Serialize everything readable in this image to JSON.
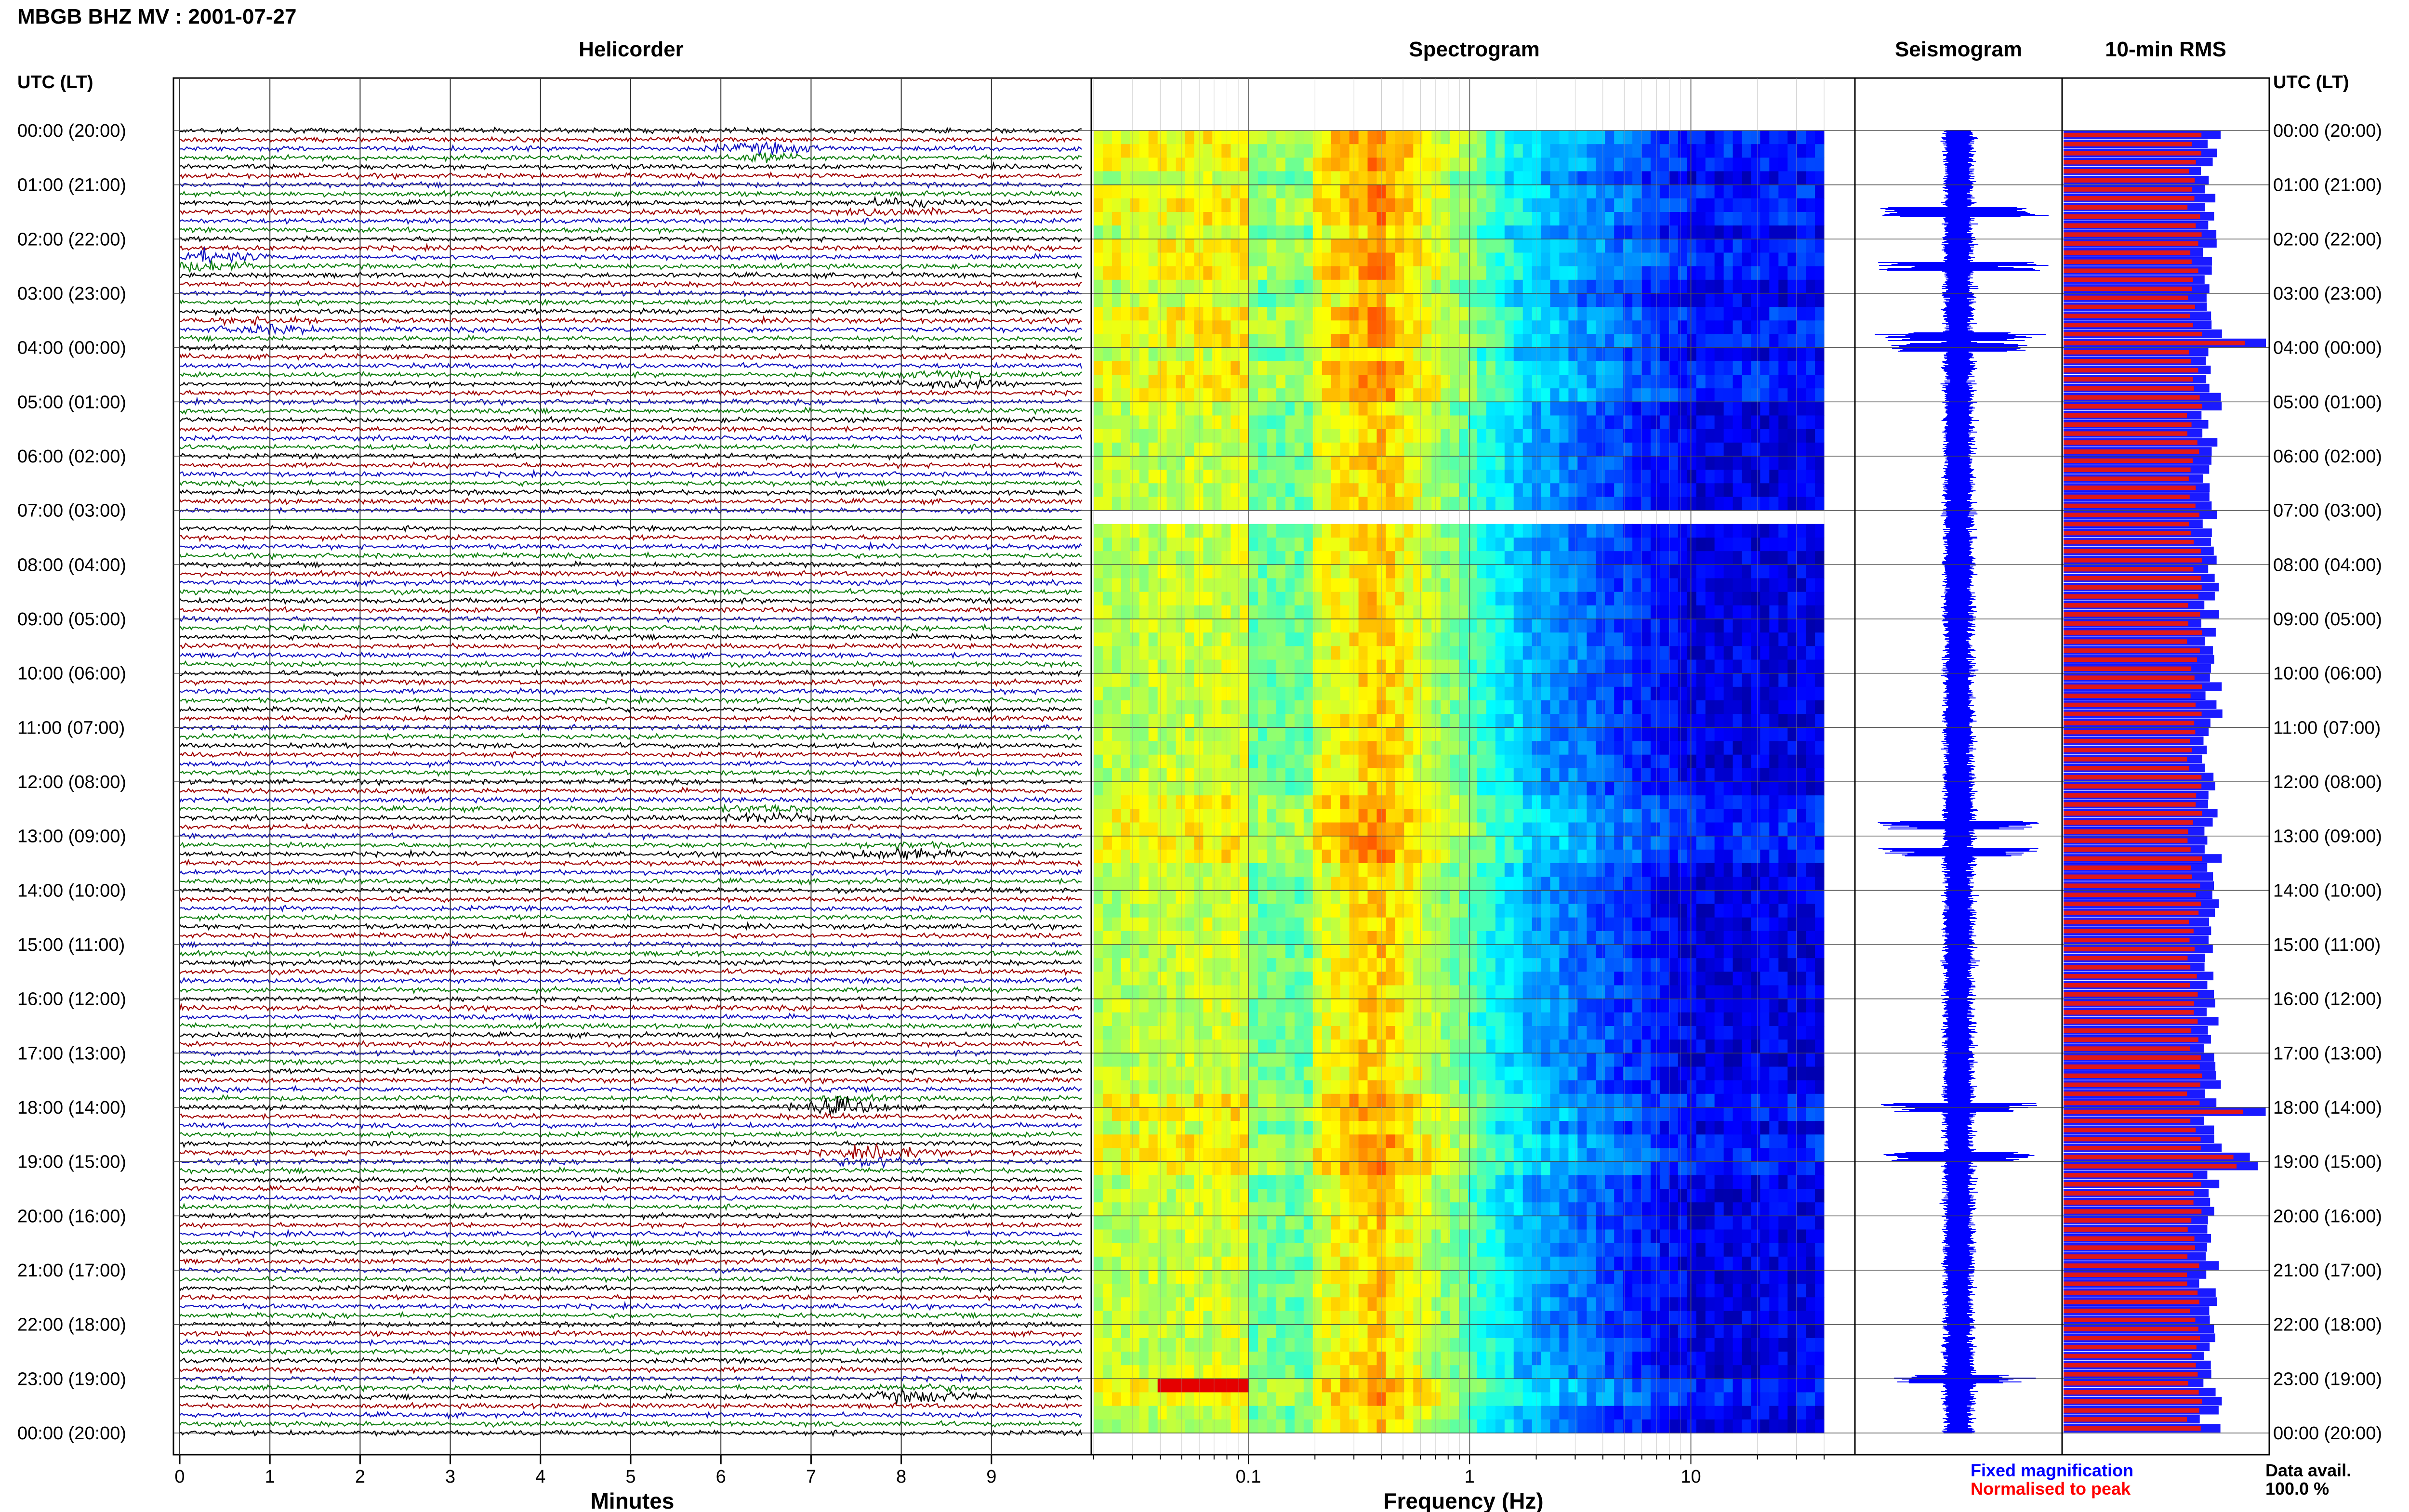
{
  "header": {
    "title": "MBGB BHZ MV : 2001-07-27"
  },
  "panels": {
    "helicorder": "Helicorder",
    "spectrogram": "Spectrogram",
    "seismogram": "Seismogram",
    "rms": "10-min RMS"
  },
  "footer": {
    "fixed": "Fixed magnification",
    "normalised": "Normalised to peak",
    "avail_label": "Data avail.",
    "avail_value": "100.0 %"
  },
  "colors": {
    "trace": [
      "#000000",
      "#a00000",
      "#1010c0",
      "#108010"
    ],
    "fixed": "#0000ff",
    "normalised": "#ff0000",
    "rms_fixed": "#1a1aff",
    "rms_norm": "#e01818"
  },
  "chart_data": [
    {
      "type": "line",
      "name": "helicorder",
      "title": "Helicorder",
      "xlabel": "Minutes",
      "xlim": [
        0,
        10
      ],
      "x_ticks": [
        "0",
        "1",
        "2",
        "3",
        "4",
        "5",
        "6",
        "7",
        "8",
        "9"
      ],
      "ylabel_left": "UTC (LT)",
      "y_ticks": [
        "00:00 (20:00)",
        "01:00 (21:00)",
        "02:00 (22:00)",
        "03:00 (23:00)",
        "04:00 (00:00)",
        "05:00 (01:00)",
        "06:00 (02:00)",
        "07:00 (03:00)",
        "08:00 (04:00)",
        "09:00 (05:00)",
        "10:00 (06:00)",
        "11:00 (07:00)",
        "12:00 (08:00)",
        "13:00 (09:00)",
        "14:00 (10:00)",
        "15:00 (11:00)",
        "16:00 (12:00)",
        "17:00 (13:00)",
        "18:00 (14:00)",
        "19:00 (15:00)",
        "20:00 (16:00)",
        "21:00 (17:00)",
        "22:00 (18:00)",
        "23:00 (19:00)",
        "00:00 (20:00)"
      ],
      "lines_per_hour": 6,
      "trace_colors": [
        "#000000",
        "#a00000",
        "#1010c0",
        "#108010"
      ],
      "events": [
        {
          "hour": 0.4,
          "minute": 6.5,
          "amplitude": 3
        },
        {
          "hour": 1.4,
          "minute": 8.0,
          "amplitude": 2.5
        },
        {
          "hour": 2.4,
          "minute": 0.3,
          "amplitude": 4
        },
        {
          "hour": 3.6,
          "minute": 1.0,
          "amplitude": 2.5
        },
        {
          "hour": 4.6,
          "minute": 8.5,
          "amplitude": 2.5
        },
        {
          "hour": 12.6,
          "minute": 6.5,
          "amplitude": 2.5
        },
        {
          "hour": 13.3,
          "minute": 8.0,
          "amplitude": 2.5
        },
        {
          "hour": 18.0,
          "minute": 7.3,
          "amplitude": 3.5
        },
        {
          "hour": 18.9,
          "minute": 7.8,
          "amplitude": 4
        },
        {
          "hour": 23.3,
          "minute": 8.2,
          "amplitude": 3
        }
      ],
      "gap_hour": 7.15
    },
    {
      "type": "heatmap",
      "name": "spectrogram",
      "title": "Spectrogram",
      "xlabel": "Frequency (Hz)",
      "x_scale": "log",
      "xlim": [
        0.02,
        40
      ],
      "x_ticks": [
        "0.1",
        "1",
        "10"
      ],
      "y_range_hours": [
        0,
        24
      ],
      "gap_hour": 7.15,
      "colormap": "jet"
    },
    {
      "type": "line",
      "name": "seismogram",
      "title": "Seismogram",
      "y_range_hours": [
        0,
        24
      ],
      "spikes_hours": [
        1.5,
        2.5,
        3.8,
        4.0,
        12.8,
        13.3,
        18.0,
        18.9,
        23.0
      ],
      "color": "#0000ff"
    },
    {
      "type": "bar",
      "name": "rms",
      "title": "10-min RMS",
      "ylabel_right": "UTC (LT)",
      "bins": 144,
      "bin_minutes": 10,
      "series": [
        {
          "name": "Fixed magnification",
          "color": "#1a1aff"
        },
        {
          "name": "Normalised to peak",
          "color": "#e01818"
        }
      ],
      "peak_hours": [
        3.9,
        18.1,
        19.0
      ],
      "data_available_percent": 100.0
    }
  ]
}
